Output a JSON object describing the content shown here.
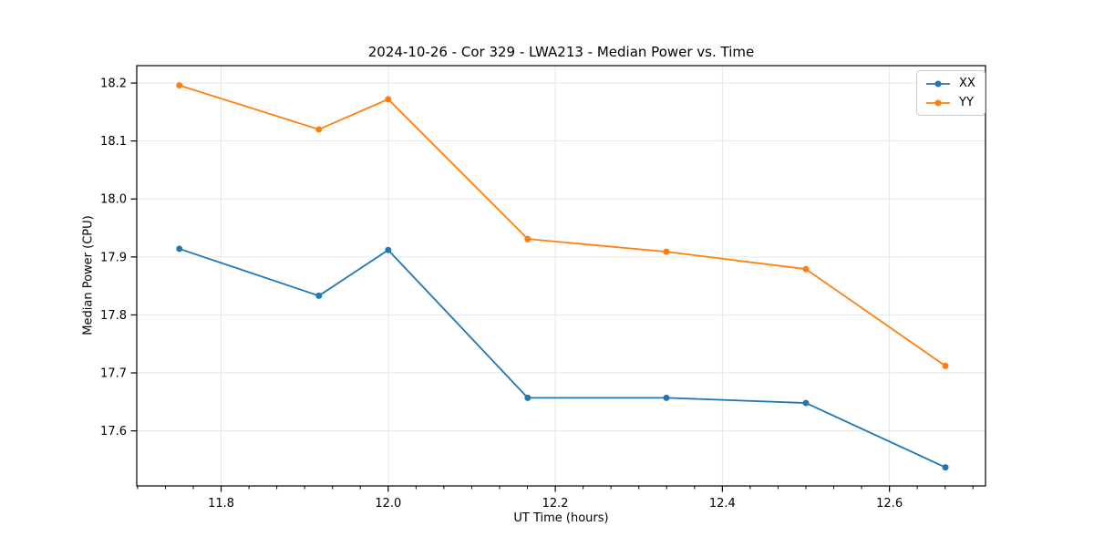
{
  "chart_data": {
    "type": "line",
    "title": "2024-10-26 - Cor 329 - LWA213 - Median Power vs. Time",
    "xlabel": "UT Time (hours)",
    "ylabel": "Median Power (CPU)",
    "xlim": [
      11.699,
      12.715
    ],
    "ylim": [
      17.505,
      18.23
    ],
    "grid": true,
    "legend_position": "upper right",
    "grid_color": "#e6e6e6",
    "spine_color": "#000000",
    "xticks": {
      "values": [
        11.8,
        12.0,
        12.2,
        12.4,
        12.6
      ],
      "labels": [
        "11.8",
        "12.0",
        "12.2",
        "12.4",
        "12.6"
      ]
    },
    "yticks": {
      "values": [
        17.6,
        17.7,
        17.8,
        17.9,
        18.0,
        18.1,
        18.2
      ],
      "labels": [
        "17.6",
        "17.7",
        "17.8",
        "17.9",
        "18.0",
        "18.1",
        "18.2"
      ]
    },
    "x_minor_tick_step": 0.0333333,
    "x": [
      11.75,
      11.917,
      12.0,
      12.167,
      12.333,
      12.5,
      12.667
    ],
    "series": [
      {
        "name": "XX",
        "color": "#1f77b4",
        "values": [
          17.914,
          17.833,
          17.912,
          17.657,
          17.657,
          17.648,
          17.537
        ]
      },
      {
        "name": "YY",
        "color": "#ff7f0e",
        "values": [
          18.196,
          18.12,
          18.172,
          17.931,
          17.909,
          17.879,
          17.712
        ]
      }
    ]
  }
}
